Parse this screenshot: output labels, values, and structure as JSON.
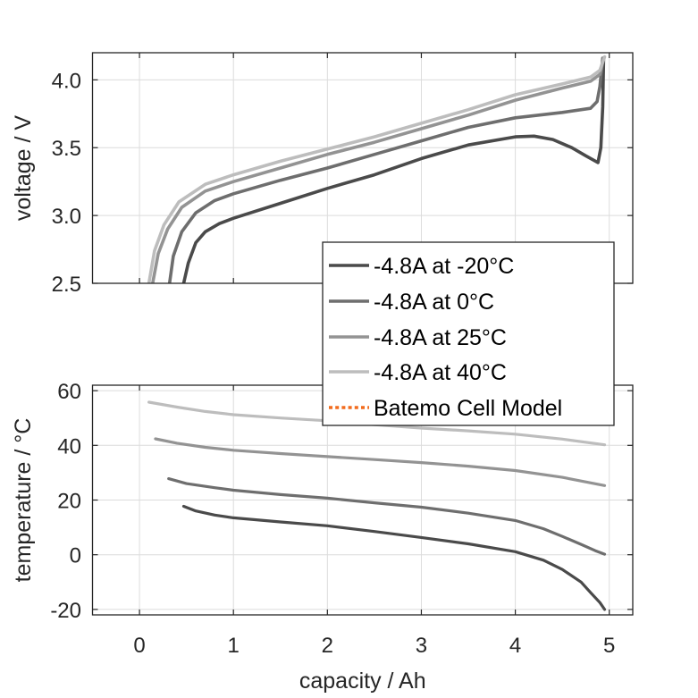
{
  "chart_data": [
    {
      "type": "line",
      "id": "voltage",
      "title": "",
      "xlabel": "",
      "ylabel": "voltage / V",
      "xlim": [
        -0.5,
        5.25
      ],
      "ylim": [
        2.5,
        4.2
      ],
      "xticks": [
        0,
        1,
        2,
        3,
        4,
        5
      ],
      "yticks": [
        2.5,
        3.0,
        3.5,
        4.0
      ],
      "ytick_labels": [
        "2.5",
        "3.0",
        "3.5",
        "4.0"
      ],
      "grid": true,
      "series": [
        {
          "name": "-4.8A at -20°C",
          "color": "#4a4a4a",
          "points": [
            [
              0.47,
              2.5
            ],
            [
              0.52,
              2.65
            ],
            [
              0.6,
              2.8
            ],
            [
              0.7,
              2.88
            ],
            [
              0.85,
              2.94
            ],
            [
              1.0,
              2.98
            ],
            [
              1.5,
              3.09
            ],
            [
              2.0,
              3.2
            ],
            [
              2.5,
              3.3
            ],
            [
              3.0,
              3.42
            ],
            [
              3.5,
              3.52
            ],
            [
              4.0,
              3.58
            ],
            [
              4.2,
              3.585
            ],
            [
              4.4,
              3.56
            ],
            [
              4.6,
              3.5
            ],
            [
              4.75,
              3.44
            ],
            [
              4.88,
              3.39
            ],
            [
              4.91,
              3.5
            ],
            [
              4.93,
              3.8
            ],
            [
              4.94,
              4.16
            ]
          ]
        },
        {
          "name": "-4.8A at 0°C",
          "color": "#6e6e6e",
          "points": [
            [
              0.32,
              2.5
            ],
            [
              0.36,
              2.7
            ],
            [
              0.45,
              2.88
            ],
            [
              0.6,
              3.02
            ],
            [
              0.8,
              3.11
            ],
            [
              1.0,
              3.16
            ],
            [
              1.5,
              3.26
            ],
            [
              2.0,
              3.35
            ],
            [
              2.5,
              3.45
            ],
            [
              3.0,
              3.55
            ],
            [
              3.5,
              3.65
            ],
            [
              4.0,
              3.72
            ],
            [
              4.5,
              3.76
            ],
            [
              4.8,
              3.79
            ],
            [
              4.87,
              3.84
            ],
            [
              4.9,
              3.95
            ],
            [
              4.93,
              4.16
            ]
          ]
        },
        {
          "name": "-4.8A at 25°C",
          "color": "#939393",
          "points": [
            [
              0.14,
              2.5
            ],
            [
              0.2,
              2.72
            ],
            [
              0.3,
              2.9
            ],
            [
              0.45,
              3.06
            ],
            [
              0.7,
              3.18
            ],
            [
              1.0,
              3.25
            ],
            [
              1.5,
              3.35
            ],
            [
              2.0,
              3.45
            ],
            [
              2.5,
              3.54
            ],
            [
              3.0,
              3.64
            ],
            [
              3.5,
              3.74
            ],
            [
              4.0,
              3.85
            ],
            [
              4.5,
              3.94
            ],
            [
              4.8,
              3.99
            ],
            [
              4.9,
              4.04
            ],
            [
              4.94,
              4.16
            ]
          ]
        },
        {
          "name": "-4.8A at 40°C",
          "color": "#bdbdbd",
          "points": [
            [
              0.1,
              2.5
            ],
            [
              0.16,
              2.74
            ],
            [
              0.26,
              2.93
            ],
            [
              0.42,
              3.1
            ],
            [
              0.7,
              3.23
            ],
            [
              1.0,
              3.3
            ],
            [
              1.5,
              3.4
            ],
            [
              2.0,
              3.49
            ],
            [
              2.5,
              3.58
            ],
            [
              3.0,
              3.68
            ],
            [
              3.5,
              3.78
            ],
            [
              4.0,
              3.89
            ],
            [
              4.5,
              3.97
            ],
            [
              4.8,
              4.02
            ],
            [
              4.9,
              4.07
            ],
            [
              4.95,
              4.17
            ]
          ]
        }
      ]
    },
    {
      "type": "line",
      "id": "temperature",
      "title": "",
      "xlabel": "capacity / Ah",
      "ylabel": "temperature / °C",
      "xlim": [
        -0.5,
        5.25
      ],
      "ylim": [
        -22,
        62
      ],
      "xticks": [
        0,
        1,
        2,
        3,
        4,
        5
      ],
      "xtick_labels": [
        "0",
        "1",
        "2",
        "3",
        "4",
        "5"
      ],
      "yticks": [
        -20,
        0,
        20,
        40,
        60
      ],
      "ytick_labels": [
        "-20",
        "0",
        "20",
        "40",
        "60"
      ],
      "grid": true,
      "series": [
        {
          "name": "-4.8A at -20°C",
          "color": "#4a4a4a",
          "points": [
            [
              0.47,
              17.7
            ],
            [
              0.6,
              16.0
            ],
            [
              0.8,
              14.5
            ],
            [
              1.0,
              13.5
            ],
            [
              1.5,
              12.0
            ],
            [
              2.0,
              10.6
            ],
            [
              2.5,
              8.5
            ],
            [
              3.0,
              6.3
            ],
            [
              3.5,
              4.0
            ],
            [
              4.0,
              1.1
            ],
            [
              4.3,
              -2.0
            ],
            [
              4.5,
              -5.4
            ],
            [
              4.7,
              -10.0
            ],
            [
              4.8,
              -13.8
            ],
            [
              4.9,
              -17.5
            ],
            [
              4.95,
              -20.0
            ]
          ]
        },
        {
          "name": "-4.8A at 0°C",
          "color": "#6e6e6e",
          "points": [
            [
              0.31,
              27.8
            ],
            [
              0.5,
              26.0
            ],
            [
              0.8,
              24.5
            ],
            [
              1.0,
              23.6
            ],
            [
              1.5,
              22.0
            ],
            [
              2.0,
              20.7
            ],
            [
              2.5,
              19.0
            ],
            [
              3.0,
              17.4
            ],
            [
              3.5,
              15.2
            ],
            [
              4.0,
              12.5
            ],
            [
              4.3,
              9.5
            ],
            [
              4.5,
              6.7
            ],
            [
              4.7,
              3.8
            ],
            [
              4.85,
              1.5
            ],
            [
              4.95,
              0.2
            ]
          ]
        },
        {
          "name": "-4.8A at 25°C",
          "color": "#939393",
          "points": [
            [
              0.17,
              42.4
            ],
            [
              0.4,
              40.8
            ],
            [
              0.7,
              39.3
            ],
            [
              1.0,
              38.2
            ],
            [
              1.5,
              37.0
            ],
            [
              2.0,
              35.9
            ],
            [
              2.5,
              34.8
            ],
            [
              3.0,
              33.7
            ],
            [
              3.5,
              32.4
            ],
            [
              4.0,
              30.8
            ],
            [
              4.5,
              28.3
            ],
            [
              4.95,
              25.3
            ]
          ]
        },
        {
          "name": "-4.8A at 40°C",
          "color": "#bdbdbd",
          "points": [
            [
              0.1,
              55.8
            ],
            [
              0.4,
              54.0
            ],
            [
              0.7,
              52.4
            ],
            [
              1.0,
              51.2
            ],
            [
              1.5,
              50.0
            ],
            [
              2.0,
              49.0
            ],
            [
              2.5,
              47.6
            ],
            [
              3.0,
              46.3
            ],
            [
              3.5,
              45.3
            ],
            [
              4.0,
              44.1
            ],
            [
              4.5,
              42.3
            ],
            [
              4.95,
              40.2
            ]
          ]
        }
      ]
    }
  ],
  "legend": {
    "placement": "center-right",
    "entries": [
      {
        "label": "-4.8A at -20°C",
        "color": "#4a4a4a",
        "style": "solid"
      },
      {
        "label": "-4.8A at 0°C",
        "color": "#6e6e6e",
        "style": "solid"
      },
      {
        "label": "-4.8A at 25°C",
        "color": "#939393",
        "style": "solid"
      },
      {
        "label": "-4.8A at 40°C",
        "color": "#bdbdbd",
        "style": "solid"
      },
      {
        "label": "Batemo Cell Model",
        "color": "#f26b1d",
        "style": "dotted"
      }
    ]
  }
}
